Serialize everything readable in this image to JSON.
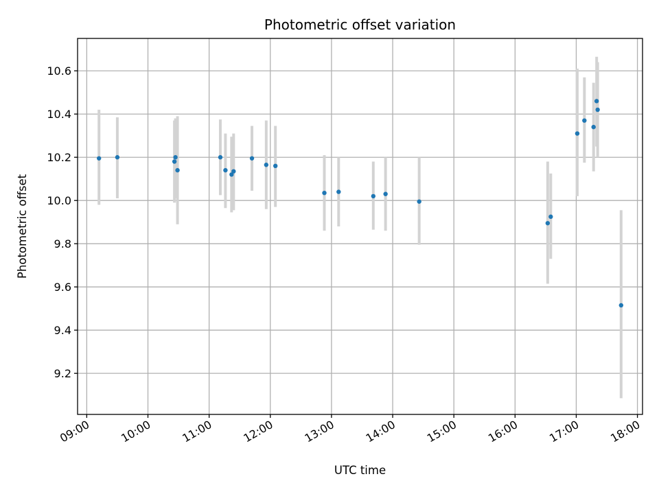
{
  "chart_data": {
    "type": "scatter",
    "title": "Photometric offset variation",
    "xlabel": "UTC time",
    "ylabel": "Photometric offset",
    "x_ticks": [
      "09:00",
      "10:00",
      "11:00",
      "12:00",
      "13:00",
      "14:00",
      "15:00",
      "16:00",
      "17:00",
      "18:00"
    ],
    "y_ticks": [
      "9.2",
      "9.4",
      "9.6",
      "9.8",
      "10.0",
      "10.2",
      "10.4",
      "10.6"
    ],
    "xlim": [
      "08:51",
      "18:05"
    ],
    "ylim": [
      9.01,
      10.75
    ],
    "grid": true,
    "colors": {
      "marker": "#1f77b4",
      "errorbar": "#d3d3d3",
      "grid": "#b0b0b0"
    },
    "points": [
      {
        "x": "09:12",
        "y": 10.195,
        "yerr_low": 9.98,
        "yerr_high": 10.42
      },
      {
        "x": "09:30",
        "y": 10.2,
        "yerr_low": 10.01,
        "yerr_high": 10.385
      },
      {
        "x": "10:26",
        "y": 10.18,
        "yerr_low": 9.99,
        "yerr_high": 10.37
      },
      {
        "x": "10:27",
        "y": 10.2,
        "yerr_low": 10.01,
        "yerr_high": 10.38
      },
      {
        "x": "10:29",
        "y": 10.14,
        "yerr_low": 9.89,
        "yerr_high": 10.39
      },
      {
        "x": "11:11",
        "y": 10.2,
        "yerr_low": 10.025,
        "yerr_high": 10.375
      },
      {
        "x": "11:16",
        "y": 10.14,
        "yerr_low": 9.965,
        "yerr_high": 10.31
      },
      {
        "x": "11:22",
        "y": 10.12,
        "yerr_low": 9.945,
        "yerr_high": 10.295
      },
      {
        "x": "11:24",
        "y": 10.135,
        "yerr_low": 9.955,
        "yerr_high": 10.31
      },
      {
        "x": "11:42",
        "y": 10.195,
        "yerr_low": 10.045,
        "yerr_high": 10.345
      },
      {
        "x": "11:56",
        "y": 10.165,
        "yerr_low": 9.96,
        "yerr_high": 10.37
      },
      {
        "x": "12:05",
        "y": 10.16,
        "yerr_low": 9.97,
        "yerr_high": 10.345
      },
      {
        "x": "12:53",
        "y": 10.035,
        "yerr_low": 9.86,
        "yerr_high": 10.21
      },
      {
        "x": "13:07",
        "y": 10.04,
        "yerr_low": 9.88,
        "yerr_high": 10.2
      },
      {
        "x": "13:41",
        "y": 10.02,
        "yerr_low": 9.865,
        "yerr_high": 10.18
      },
      {
        "x": "13:53",
        "y": 10.03,
        "yerr_low": 9.86,
        "yerr_high": 10.2
      },
      {
        "x": "14:26",
        "y": 9.995,
        "yerr_low": 9.795,
        "yerr_high": 10.2
      },
      {
        "x": "16:32",
        "y": 9.895,
        "yerr_low": 9.615,
        "yerr_high": 10.18
      },
      {
        "x": "16:35",
        "y": 9.925,
        "yerr_low": 9.73,
        "yerr_high": 10.125
      },
      {
        "x": "17:01",
        "y": 10.31,
        "yerr_low": 10.02,
        "yerr_high": 10.61
      },
      {
        "x": "17:08",
        "y": 10.37,
        "yerr_low": 10.175,
        "yerr_high": 10.57
      },
      {
        "x": "17:17",
        "y": 10.34,
        "yerr_low": 10.135,
        "yerr_high": 10.545
      },
      {
        "x": "17:20",
        "y": 10.46,
        "yerr_low": 10.25,
        "yerr_high": 10.665
      },
      {
        "x": "17:21",
        "y": 10.42,
        "yerr_low": 10.2,
        "yerr_high": 10.64
      },
      {
        "x": "17:44",
        "y": 9.515,
        "yerr_low": 9.085,
        "yerr_high": 9.955
      }
    ]
  }
}
